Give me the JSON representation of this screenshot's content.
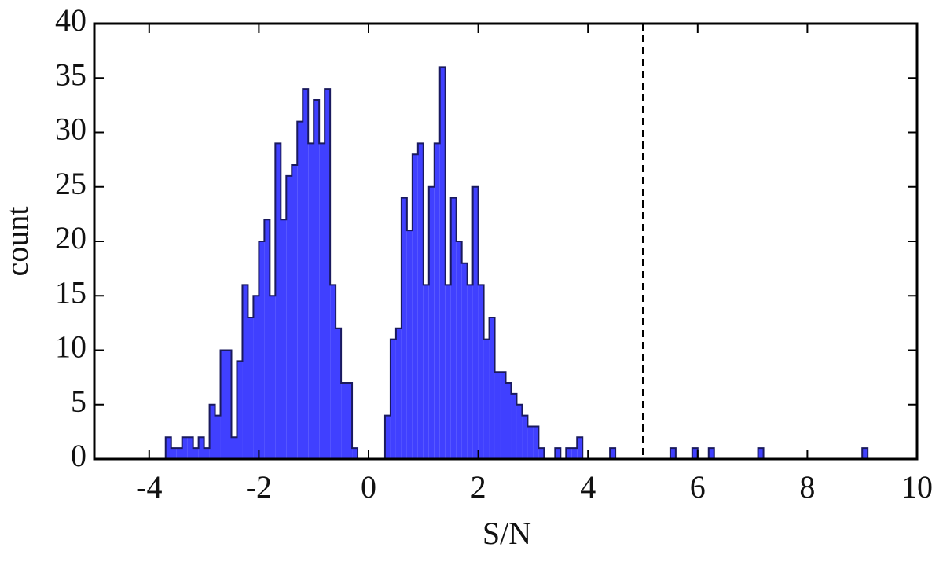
{
  "chart_data": {
    "type": "histogram",
    "xlabel": "S/N",
    "ylabel": "count",
    "bins": [
      -3.7,
      -3.6,
      -3.5,
      -3.4,
      -3.3,
      -3.2,
      -3.1,
      -3,
      -2.9,
      -2.8,
      -2.7,
      -2.6,
      -2.5,
      -2.4,
      -2.3,
      -2.2,
      -2.1,
      -2,
      -1.9,
      -1.8,
      -1.7,
      -1.6,
      -1.5,
      -1.4,
      -1.3,
      -1.2,
      -1.1,
      -1,
      -0.9,
      -0.8,
      -0.7,
      -0.6,
      -0.5,
      -0.4,
      -0.3,
      -0.2,
      -0.1,
      0,
      0.1,
      0.2,
      0.3,
      0.4,
      0.5,
      0.6,
      0.7,
      0.8,
      0.9,
      1,
      1.1,
      1.2,
      1.3,
      1.4,
      1.5,
      1.6,
      1.7,
      1.8,
      1.9,
      2,
      2.1,
      2.2,
      2.3,
      2.4,
      2.5,
      2.6,
      2.7,
      2.8,
      2.9,
      3,
      3.1,
      3.2,
      3.3,
      3.4,
      3.5,
      3.6,
      3.7,
      3.8,
      3.9,
      4,
      4.1,
      4.2,
      4.3,
      4.4,
      4.5,
      4.6,
      4.7,
      4.8,
      4.9,
      5,
      5.1,
      5.2,
      5.3,
      5.4,
      5.5,
      5.6,
      5.7,
      5.8,
      5.9,
      6,
      6.1,
      6.2,
      6.3,
      6.4,
      6.5,
      6.6,
      6.7,
      6.8,
      6.9,
      7,
      7.1,
      7.2,
      7.3,
      7.4,
      7.5,
      7.6,
      7.7,
      7.8,
      7.9,
      8,
      8.1,
      8.2,
      8.3,
      8.4,
      8.5,
      8.6,
      8.7,
      8.8,
      8.9,
      9,
      9.1
    ],
    "values": [
      2,
      1,
      1,
      2,
      2,
      1,
      2,
      1,
      5,
      4,
      10,
      10,
      2,
      9,
      16,
      13,
      15,
      20,
      22,
      15,
      29,
      22,
      26,
      27,
      31,
      34,
      29,
      33,
      29,
      34,
      16,
      12,
      7,
      7,
      1,
      0,
      0,
      0,
      0,
      0,
      4,
      11,
      12,
      24,
      21,
      28,
      29,
      16,
      25,
      29,
      36,
      16,
      24,
      20,
      18,
      16,
      25,
      16,
      11,
      13,
      8,
      8,
      7,
      6,
      5,
      4,
      3,
      3,
      1,
      0,
      0,
      1,
      0,
      1,
      1,
      2,
      0,
      0,
      0,
      0,
      0,
      1,
      0,
      0,
      0,
      0,
      0,
      0,
      0,
      0,
      0,
      0,
      1,
      0,
      0,
      0,
      1,
      0,
      0,
      1,
      0,
      0,
      0,
      0,
      0,
      0,
      0,
      0,
      1,
      0,
      0,
      0,
      0,
      0,
      0,
      0,
      0,
      0,
      0,
      0,
      0,
      0,
      0,
      0,
      0,
      0,
      0,
      1
    ],
    "color": "#4040ff",
    "edgecolor": "#1a1a5e",
    "xlim": [
      -5,
      10
    ],
    "xticks": [
      -4,
      -2,
      0,
      2,
      4,
      6,
      8,
      10
    ],
    "ylim": [
      0,
      40
    ],
    "yticks": [
      0,
      5,
      10,
      15,
      20,
      25,
      30,
      35,
      40
    ],
    "vline": 5
  }
}
